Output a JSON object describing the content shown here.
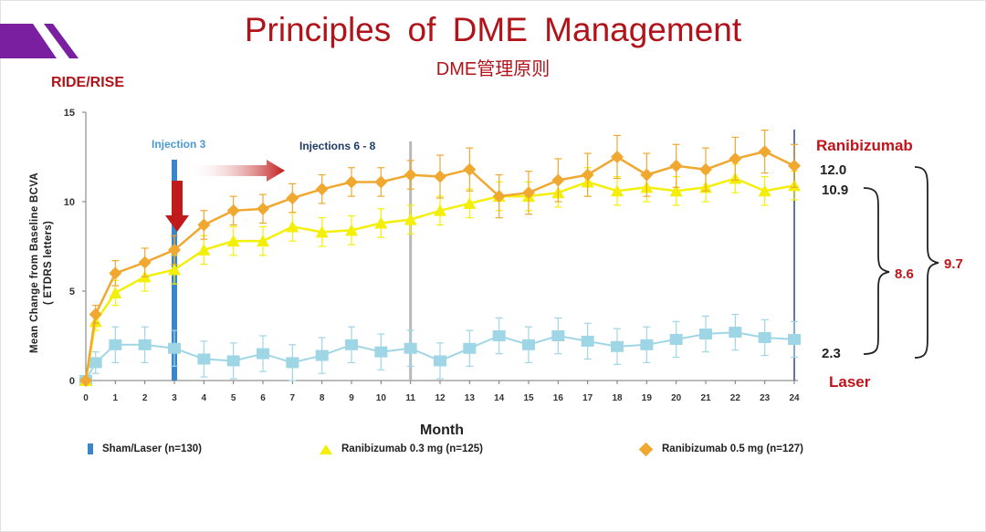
{
  "slide": {
    "title": "Principles of DME Management",
    "subtitle": "DME管理原则",
    "study_label": "RIDE/RISE",
    "colors": {
      "title": "#b0141a",
      "logo": "#7a1fa0"
    }
  },
  "chart_data": {
    "type": "line",
    "x": [
      0,
      0.33,
      1,
      2,
      3,
      4,
      5,
      6,
      7,
      8,
      9,
      10,
      11,
      12,
      13,
      14,
      15,
      16,
      17,
      18,
      19,
      20,
      21,
      22,
      23,
      24
    ],
    "x_ticks": [
      0,
      1,
      2,
      3,
      4,
      5,
      6,
      7,
      8,
      9,
      10,
      11,
      12,
      13,
      14,
      15,
      16,
      17,
      18,
      19,
      20,
      21,
      22,
      23,
      24
    ],
    "xlim": [
      0,
      24
    ],
    "ylim": [
      0,
      15
    ],
    "y_ticks": [
      0,
      5,
      10,
      15
    ],
    "xlabel": "Month",
    "ylabel_lines": [
      "Mean Change from Baseline BCVA",
      "( ETDRS letters)"
    ],
    "grid": false,
    "series": [
      {
        "name": "Sham/Laser (n=130)",
        "marker": "square",
        "color": "#9fd6e6",
        "legend_color": "#3a86c8",
        "values": [
          0,
          1.0,
          2.0,
          2.0,
          1.8,
          1.2,
          1.1,
          1.5,
          1.0,
          1.4,
          2.0,
          1.6,
          1.8,
          1.1,
          1.8,
          2.5,
          2.0,
          2.5,
          2.2,
          1.9,
          2.0,
          2.3,
          2.6,
          2.7,
          2.4,
          2.3
        ],
        "error": [
          0,
          0.6,
          1.0,
          1.0,
          1.0,
          1.0,
          1.0,
          1.0,
          1.0,
          1.0,
          1.0,
          1.0,
          1.0,
          1.0,
          1.0,
          1.0,
          1.0,
          1.0,
          1.0,
          1.0,
          1.0,
          1.0,
          1.0,
          1.0,
          1.0,
          1.0
        ]
      },
      {
        "name": "Ranibizumab 0.3 mg (n=125)",
        "marker": "triangle",
        "color": "#f4ef08",
        "legend_color": "#f4ef08",
        "values": [
          0,
          3.3,
          4.9,
          5.8,
          6.2,
          7.3,
          7.8,
          7.8,
          8.6,
          8.3,
          8.4,
          8.8,
          9.0,
          9.5,
          9.9,
          10.3,
          10.3,
          10.5,
          11.1,
          10.6,
          10.8,
          10.6,
          10.8,
          11.3,
          10.6,
          10.9
        ],
        "error": [
          0,
          0.5,
          0.7,
          0.8,
          0.8,
          0.8,
          0.8,
          0.8,
          0.8,
          0.8,
          0.8,
          0.8,
          0.8,
          0.8,
          0.8,
          0.8,
          0.8,
          0.8,
          0.8,
          0.8,
          0.8,
          0.8,
          0.8,
          0.8,
          0.8,
          0.8
        ]
      },
      {
        "name": "Ranibizumab 0.5 mg (n=127)",
        "marker": "diamond",
        "color": "#f0a830",
        "legend_color": "#f0a830",
        "values": [
          0,
          3.7,
          6.0,
          6.6,
          7.3,
          8.7,
          9.5,
          9.6,
          10.2,
          10.7,
          11.1,
          11.1,
          11.5,
          11.4,
          11.8,
          10.3,
          10.5,
          11.2,
          11.5,
          12.5,
          11.5,
          12.0,
          11.8,
          12.4,
          12.8,
          12.0
        ],
        "error": [
          0,
          0.5,
          0.7,
          0.8,
          0.8,
          0.8,
          0.8,
          0.8,
          0.8,
          0.8,
          0.8,
          0.8,
          0.8,
          1.2,
          1.2,
          1.2,
          1.2,
          1.2,
          1.2,
          1.2,
          1.2,
          1.2,
          1.2,
          1.2,
          1.2,
          1.2
        ]
      }
    ],
    "vertical_markers": [
      {
        "x": 3,
        "color": "#3a86c8",
        "label": "Injection 3",
        "label_color": "#4a9ad0"
      },
      {
        "x": 11,
        "color": "#b8b8b8",
        "label": ""
      },
      {
        "x": 24,
        "color": "#5a78a8",
        "label": ""
      }
    ],
    "annotations": {
      "injection_6_8": "Injections 6 - 8",
      "injection_6_8_color": "#1f3c68",
      "arrow_color": "#c01a1a",
      "ranibizumab_label": "Ranibizumab",
      "laser_label": "Laser",
      "end_values": {
        "rz05": "12.0",
        "rz03": "10.9",
        "laser": "2.3"
      },
      "difference_rz03": "8.6",
      "difference_rz05": "9.7",
      "label_color": "#c0141a"
    }
  }
}
